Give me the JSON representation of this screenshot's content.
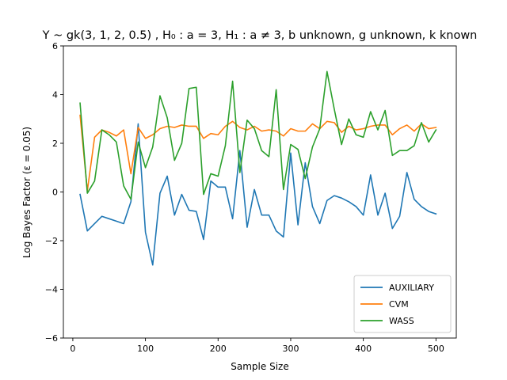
{
  "chart_data": {
    "type": "line",
    "title": "Y ~ gk(3, 1, 2, 0.5) , H₀ : a = 3, H₁ : a ≠ 3,  b unknown, g unknown, k known",
    "xlabel": "Sample Size",
    "ylabel": "Log Bayes Factor (ε = 0.05)",
    "xlim": [
      -13,
      528
    ],
    "ylim": [
      -6,
      6
    ],
    "xticks": [
      0,
      100,
      200,
      300,
      400,
      500
    ],
    "yticks": [
      -6,
      -4,
      -2,
      0,
      2,
      4,
      6
    ],
    "grid": false,
    "legend_position": "lower-right",
    "x": [
      10,
      20,
      30,
      40,
      50,
      60,
      70,
      80,
      90,
      100,
      110,
      120,
      130,
      140,
      150,
      160,
      170,
      180,
      190,
      200,
      210,
      220,
      230,
      240,
      250,
      260,
      270,
      280,
      290,
      300,
      310,
      320,
      330,
      340,
      350,
      360,
      370,
      380,
      390,
      400,
      410,
      420,
      430,
      440,
      450,
      460,
      470,
      480,
      490,
      500
    ],
    "series": [
      {
        "name": "AUXILIARY",
        "color": "#1f77b4",
        "values": [
          -0.1,
          -1.6,
          -1.3,
          -1.0,
          -1.1,
          -1.2,
          -1.3,
          -0.4,
          2.8,
          -1.65,
          -3.0,
          -0.05,
          0.65,
          -0.95,
          -0.1,
          -0.75,
          -0.8,
          -1.95,
          0.45,
          0.2,
          0.2,
          -1.1,
          1.7,
          -1.45,
          0.1,
          -0.95,
          -0.95,
          -1.6,
          -1.85,
          1.6,
          -1.35,
          1.2,
          -0.6,
          -1.3,
          -0.35,
          -0.15,
          -0.25,
          -0.4,
          -0.6,
          -0.95,
          0.7,
          -0.95,
          -0.05,
          -1.5,
          -1.0,
          0.8,
          -0.3,
          -0.6,
          -0.8,
          -0.9
        ]
      },
      {
        "name": "CVM",
        "color": "#ff7f0e",
        "values": [
          3.15,
          0.05,
          2.25,
          2.55,
          2.45,
          2.3,
          2.55,
          0.75,
          2.65,
          2.2,
          2.35,
          2.6,
          2.7,
          2.65,
          2.75,
          2.7,
          2.7,
          2.2,
          2.4,
          2.35,
          2.7,
          2.9,
          2.65,
          2.55,
          2.7,
          2.5,
          2.55,
          2.5,
          2.3,
          2.6,
          2.5,
          2.5,
          2.8,
          2.6,
          2.9,
          2.85,
          2.45,
          2.7,
          2.55,
          2.6,
          2.7,
          2.75,
          2.75,
          2.35,
          2.6,
          2.75,
          2.5,
          2.8,
          2.6,
          2.65
        ]
      },
      {
        "name": "WASS",
        "color": "#2ca02c",
        "values": [
          3.65,
          -0.05,
          0.45,
          2.55,
          2.35,
          2.05,
          0.25,
          -0.3,
          2.05,
          1.0,
          1.85,
          3.95,
          3.05,
          1.3,
          2.0,
          4.25,
          4.3,
          -0.1,
          0.75,
          0.65,
          1.9,
          4.55,
          0.8,
          2.95,
          2.6,
          1.7,
          1.45,
          4.2,
          0.1,
          1.95,
          1.75,
          0.55,
          1.85,
          2.6,
          4.95,
          3.4,
          1.95,
          3.0,
          2.35,
          2.25,
          3.3,
          2.55,
          3.35,
          1.5,
          1.7,
          1.7,
          1.9,
          2.85,
          2.05,
          2.55
        ]
      }
    ]
  }
}
